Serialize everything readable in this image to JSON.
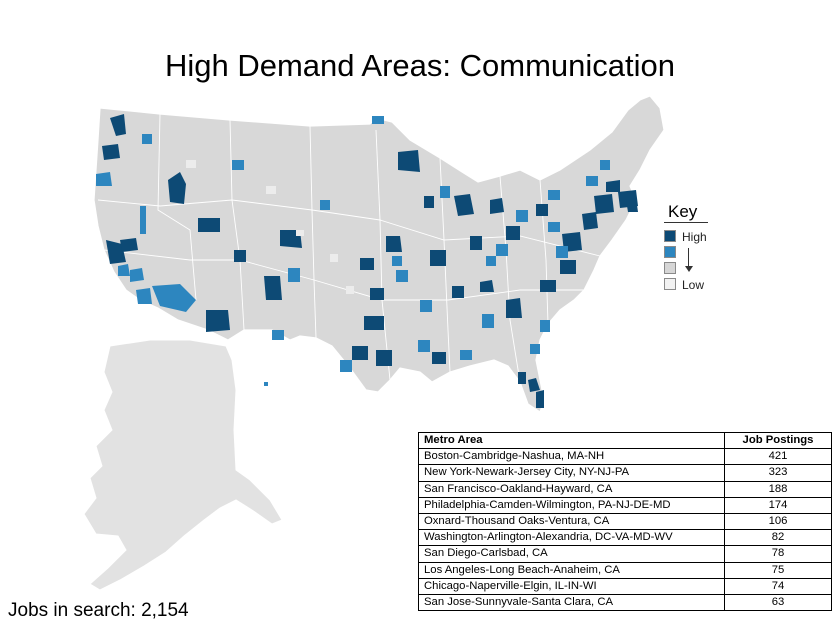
{
  "title": "High Demand Areas: Communication",
  "key": {
    "title": "Key",
    "high_label": "High",
    "low_label": "Low",
    "colors": [
      "#0d4a75",
      "#2d86bf",
      "#d6d6d6",
      "#f2f2f2"
    ]
  },
  "map_colors": {
    "base_land": "#d8d8d8",
    "alaska": "#e2e2e2",
    "high": "#0d4a75",
    "medium": "#2d86bf"
  },
  "jobs_in_search": "Jobs in search: 2,154",
  "table": {
    "headers": [
      "Metro Area",
      "Job Postings"
    ],
    "rows": [
      [
        "Boston-Cambridge-Nashua, MA-NH",
        "421"
      ],
      [
        "New York-Newark-Jersey City, NY-NJ-PA",
        "323"
      ],
      [
        "San Francisco-Oakland-Hayward, CA",
        "188"
      ],
      [
        "Philadelphia-Camden-Wilmington, PA-NJ-DE-MD",
        "174"
      ],
      [
        "Oxnard-Thousand Oaks-Ventura, CA",
        "106"
      ],
      [
        "Washington-Arlington-Alexandria, DC-VA-MD-WV",
        "82"
      ],
      [
        "San Diego-Carlsbad, CA",
        "78"
      ],
      [
        "Los Angeles-Long Beach-Anaheim, CA",
        "75"
      ],
      [
        "Chicago-Naperville-Elgin, IL-IN-WI",
        "74"
      ],
      [
        "San Jose-Sunnyvale-Santa Clara, CA",
        "63"
      ]
    ]
  }
}
